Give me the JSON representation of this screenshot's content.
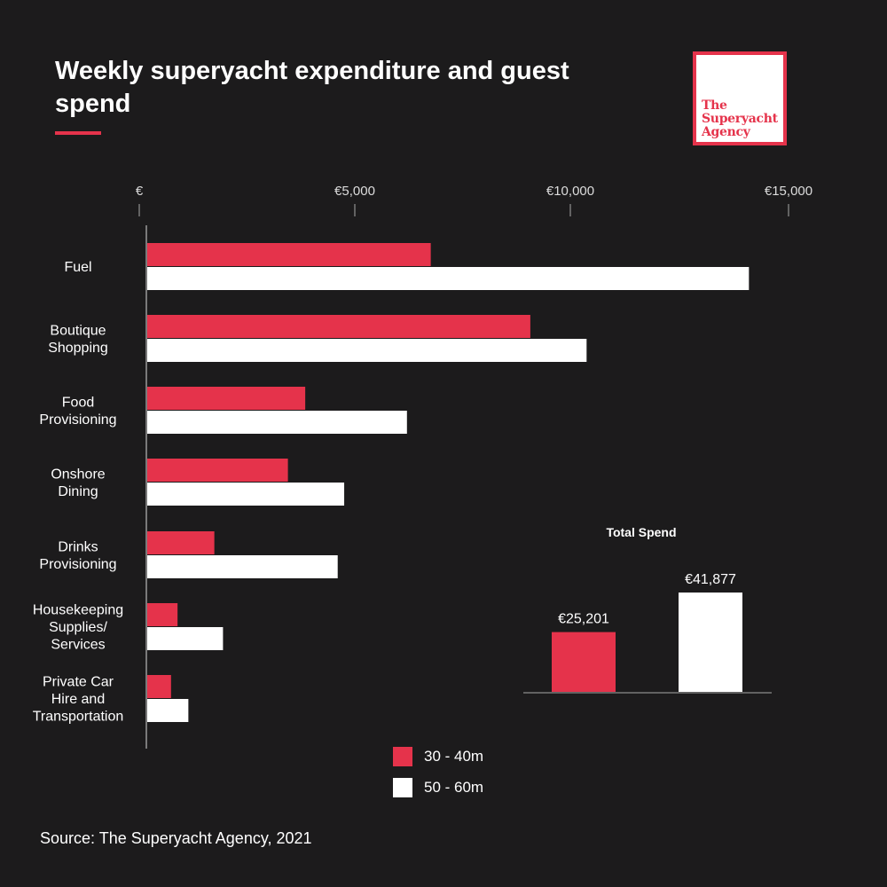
{
  "header": {
    "title": "Weekly superyacht expenditure and guest spend",
    "logo_text": "The Superyacht Agency"
  },
  "colors": {
    "background": "#1c1b1c",
    "series_small": "#e5334b",
    "series_large": "#ffffff",
    "axis": "#7a7a7a",
    "brand": "#e5334b"
  },
  "legend": [
    {
      "label": "30 - 40m",
      "color": "#e5334b"
    },
    {
      "label": "50 - 60m",
      "color": "#ffffff"
    }
  ],
  "source": "Source: The Superyacht Agency, 2021",
  "chart_data": [
    {
      "type": "bar",
      "orientation": "horizontal",
      "categories": [
        [
          "Fuel"
        ],
        [
          "Boutique",
          "Shopping"
        ],
        [
          "Food",
          "Provisioning"
        ],
        [
          "Onshore",
          "Dining"
        ],
        [
          "Drinks",
          "Provisioning"
        ],
        [
          "Housekeeping",
          "Supplies/",
          "Services"
        ],
        [
          "Private Car",
          "Hire and",
          "Transportation"
        ]
      ],
      "series": [
        {
          "name": "30 - 40m",
          "values": [
            6550,
            8850,
            3650,
            3250,
            1550,
            700,
            550
          ]
        },
        {
          "name": "50 - 60m",
          "values": [
            13900,
            10150,
            6000,
            4550,
            4400,
            1750,
            950
          ]
        }
      ],
      "xtick_values": [
        0,
        5000,
        10000,
        15000
      ],
      "xtick_labels": [
        "€",
        "€5,000",
        "€10,000",
        "€15,000"
      ],
      "xlim": [
        0,
        15000
      ],
      "legend": "bottom"
    },
    {
      "type": "bar",
      "title": "Total Spend",
      "categories": [
        "30 - 40m",
        "50 - 60m"
      ],
      "values": [
        25201,
        41877
      ],
      "data_labels": [
        "€25,201",
        "€41,877"
      ],
      "ylim": [
        0,
        41877
      ]
    }
  ]
}
